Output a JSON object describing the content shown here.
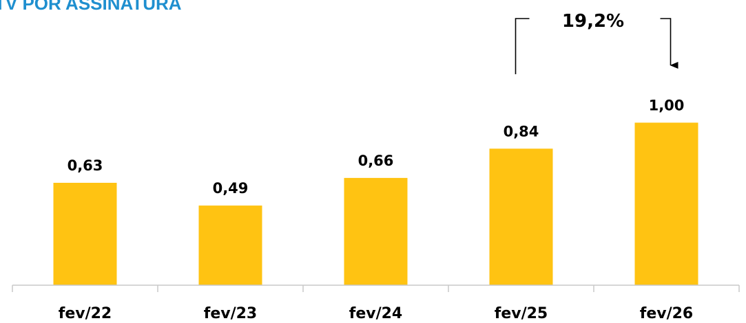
{
  "chart_data": {
    "type": "bar",
    "title": "TV POR ASSINATURA",
    "categories": [
      "fev/22",
      "fev/23",
      "fev/24",
      "fev/25",
      "fev/26"
    ],
    "values": [
      0.63,
      0.49,
      0.66,
      0.84,
      1.0
    ],
    "data_labels": [
      "0,63",
      "0,49",
      "0,66",
      "0,84",
      "1,00"
    ],
    "xlabel": "",
    "ylabel": "",
    "ylim": [
      0,
      1.15
    ],
    "grid": false,
    "bar_color": "#FFC312",
    "title_color": "#1F8FCF",
    "annotation": {
      "text": "19,2%",
      "from_category": "fev/25",
      "to_category": "fev/26"
    }
  }
}
